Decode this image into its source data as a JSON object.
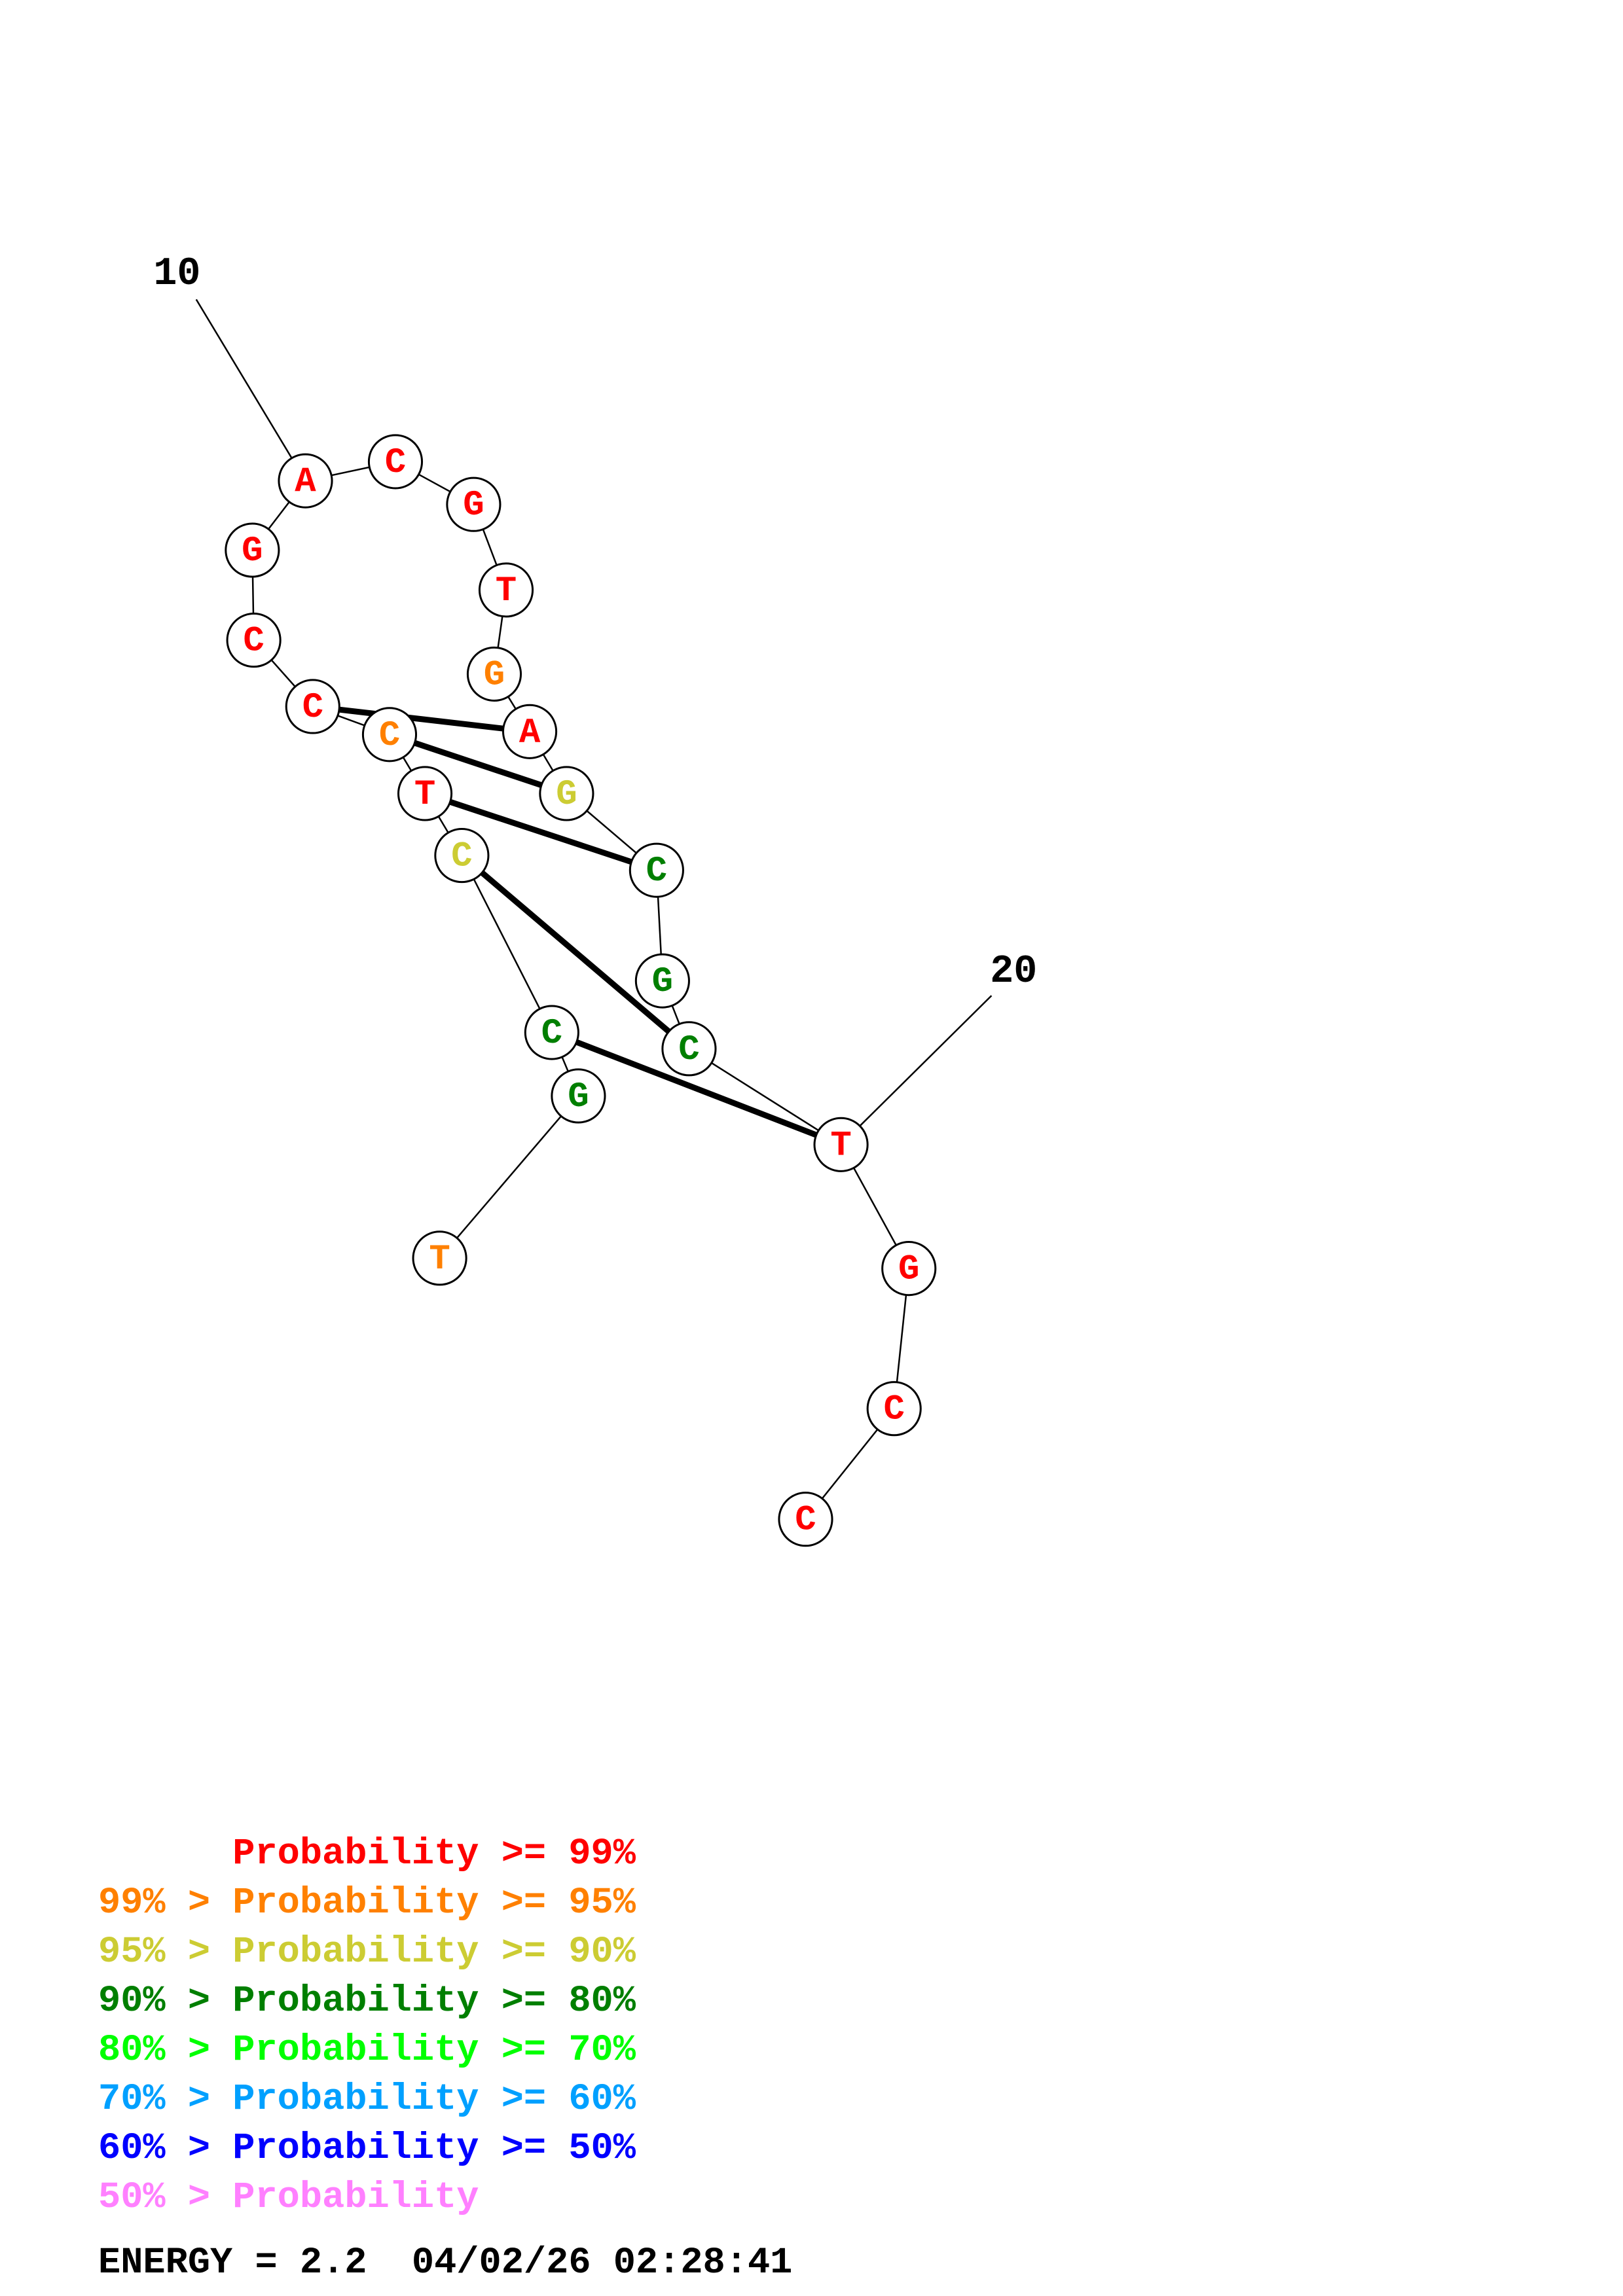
{
  "structure": {
    "position_markers": [
      "10",
      "20"
    ],
    "nucleotides": [
      {
        "base": "T",
        "prob": "orange"
      },
      {
        "base": "G",
        "prob": "darkgreen"
      },
      {
        "base": "C",
        "prob": "darkgreen"
      },
      {
        "base": "C",
        "prob": "yellow"
      },
      {
        "base": "T",
        "prob": "red"
      },
      {
        "base": "C",
        "prob": "orange"
      },
      {
        "base": "C",
        "prob": "red"
      },
      {
        "base": "C",
        "prob": "red"
      },
      {
        "base": "G",
        "prob": "red"
      },
      {
        "base": "A",
        "prob": "red"
      },
      {
        "base": "C",
        "prob": "red"
      },
      {
        "base": "G",
        "prob": "red"
      },
      {
        "base": "T",
        "prob": "red"
      },
      {
        "base": "G",
        "prob": "orange"
      },
      {
        "base": "A",
        "prob": "red"
      },
      {
        "base": "G",
        "prob": "yellow"
      },
      {
        "base": "C",
        "prob": "darkgreen"
      },
      {
        "base": "G",
        "prob": "darkgreen"
      },
      {
        "base": "C",
        "prob": "darkgreen"
      },
      {
        "base": "T",
        "prob": "red"
      },
      {
        "base": "G",
        "prob": "red"
      },
      {
        "base": "C",
        "prob": "red"
      },
      {
        "base": "C",
        "prob": "red"
      }
    ],
    "pairs": [
      [
        2,
        19
      ],
      [
        3,
        18
      ],
      [
        4,
        16
      ],
      [
        5,
        15
      ],
      [
        6,
        14
      ]
    ]
  },
  "colors": {
    "red": "#ff0000",
    "orange": "#ff8000",
    "yellow": "#cccc33",
    "darkgreen": "#007f00",
    "green": "#00ff00",
    "lightblue": "#00a0ff",
    "blue": "#0000ff",
    "pink": "#ff80ff"
  },
  "legend": [
    {
      "text": "      Probability >= 99%",
      "color": "red"
    },
    {
      "text": "99% > Probability >= 95%",
      "color": "orange"
    },
    {
      "text": "95% > Probability >= 90%",
      "color": "yellow"
    },
    {
      "text": "90% > Probability >= 80%",
      "color": "darkgreen"
    },
    {
      "text": "80% > Probability >= 70%",
      "color": "green"
    },
    {
      "text": "70% > Probability >= 60%",
      "color": "lightblue"
    },
    {
      "text": "60% > Probability >= 50%",
      "color": "blue"
    },
    {
      "text": "50% > Probability",
      "color": "pink"
    }
  ],
  "energy_line": "ENERGY = 2.2  04/02/26 02:28:41"
}
